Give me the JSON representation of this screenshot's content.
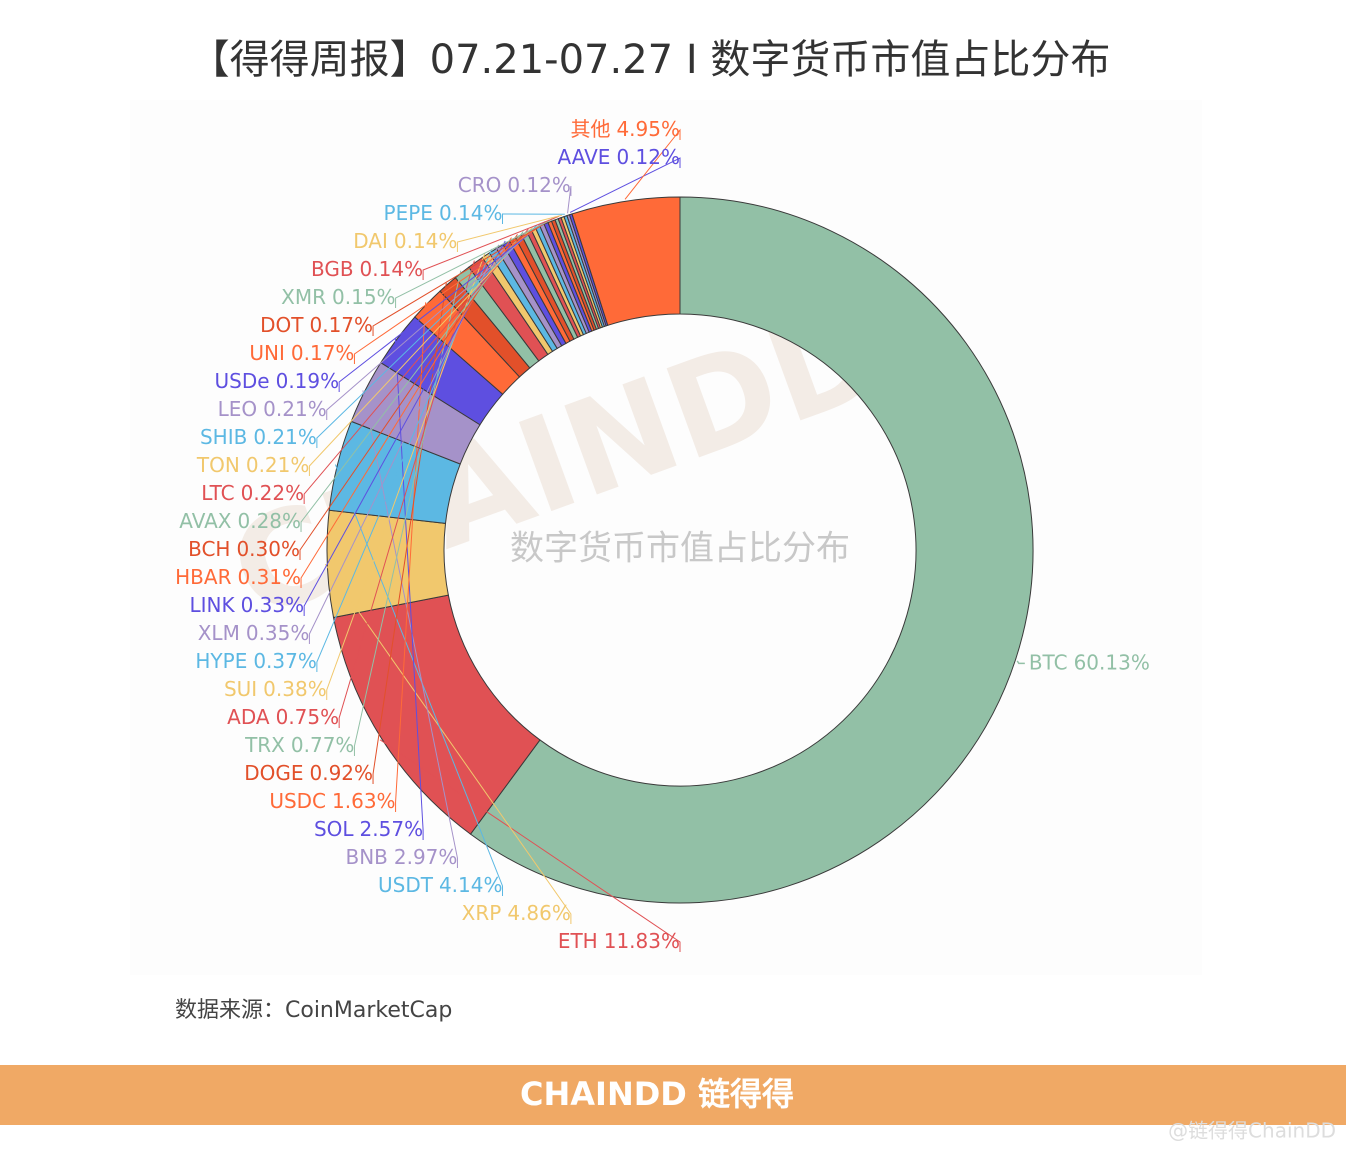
{
  "chart_data": {
    "type": "donut",
    "title": "【得得周报】07.21-07.27 I 数字货币市值占比分布",
    "center_text": "数字货币市值占比分布",
    "categories": [
      "BTC",
      "ETH",
      "XRP",
      "USDT",
      "BNB",
      "SOL",
      "USDC",
      "DOGE",
      "TRX",
      "ADA",
      "SUI",
      "HYPE",
      "XLM",
      "LINK",
      "HBAR",
      "BCH",
      "AVAX",
      "LTC",
      "TON",
      "SHIB",
      "LEO",
      "USDe",
      "UNI",
      "DOT",
      "XMR",
      "BGB",
      "DAI",
      "PEPE",
      "CRO",
      "AAVE",
      "其他"
    ],
    "values": [
      60.13,
      11.83,
      4.86,
      4.14,
      2.97,
      2.57,
      1.63,
      0.92,
      0.77,
      0.75,
      0.38,
      0.37,
      0.35,
      0.33,
      0.31,
      0.3,
      0.28,
      0.22,
      0.21,
      0.21,
      0.21,
      0.19,
      0.17,
      0.17,
      0.15,
      0.14,
      0.14,
      0.14,
      0.12,
      0.12,
      4.95
    ],
    "value_labels": [
      "60.13%",
      "11.83%",
      "4.86%",
      "4.14%",
      "2.97%",
      "2.57%",
      "1.63%",
      "0.92%",
      "0.77%",
      "0.75%",
      "0.38%",
      "0.37%",
      "0.35%",
      "0.33%",
      "0.31%",
      "0.30%",
      "0.28%",
      "0.22%",
      "0.21%",
      "0.21%",
      "0.21%",
      "0.19%",
      "0.17%",
      "0.17%",
      "0.15%",
      "0.14%",
      "0.14%",
      "0.14%",
      "0.12%",
      "0.12%",
      "4.95%"
    ],
    "colors": [
      "#92c0a6",
      "#e05154",
      "#f1c86d",
      "#5cb8e3",
      "#a592c9",
      "#5e4fe0",
      "#ff6a38",
      "#e2502a"
    ],
    "source": "数据来源：CoinMarketCap",
    "footer": "CHAINDD 链得得",
    "watermark": "CHAINDD",
    "handle": "@链得得ChainDD"
  }
}
